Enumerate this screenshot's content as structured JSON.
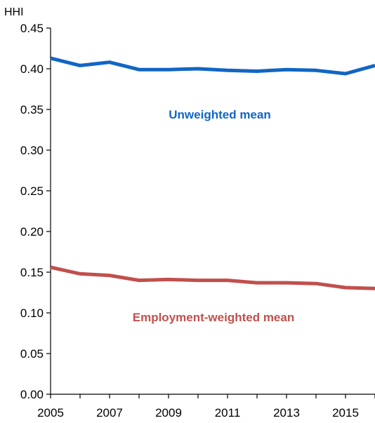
{
  "chart_data": {
    "type": "line",
    "title": "",
    "ylabel": "HHI",
    "xlabel": "",
    "x": [
      2005,
      2006,
      2007,
      2008,
      2009,
      2010,
      2011,
      2012,
      2013,
      2014,
      2015,
      2016
    ],
    "xlim": [
      2005,
      2016
    ],
    "ylim": [
      0,
      0.45
    ],
    "x_ticks": [
      "2005",
      "2007",
      "2009",
      "2011",
      "2013",
      "2015"
    ],
    "y_ticks": [
      "0.00",
      "0.05",
      "0.10",
      "0.15",
      "0.20",
      "0.25",
      "0.30",
      "0.35",
      "0.40",
      "0.45"
    ],
    "grid": false,
    "legend": "none",
    "series": [
      {
        "name": "Unweighted mean",
        "color": "#1166c4",
        "values": [
          0.413,
          0.404,
          0.408,
          0.399,
          0.399,
          0.4,
          0.398,
          0.397,
          0.399,
          0.398,
          0.394,
          0.404
        ]
      },
      {
        "name": "Employment-weighted mean",
        "color": "#c0504d",
        "values": [
          0.156,
          0.148,
          0.146,
          0.14,
          0.141,
          0.14,
          0.14,
          0.137,
          0.137,
          0.136,
          0.131,
          0.13
        ]
      }
    ]
  }
}
